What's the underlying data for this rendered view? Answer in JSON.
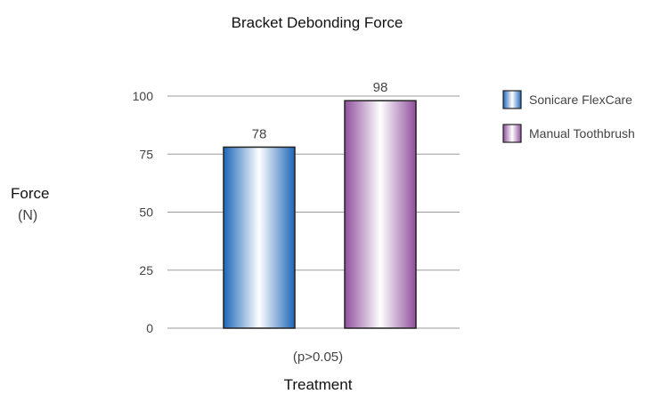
{
  "chart_data": {
    "type": "bar",
    "title": "Bracket Debonding Force",
    "ylabel": "Force",
    "yunit": "(N)",
    "xlabel": "Treatment",
    "note": "(p>0.05)",
    "ylim": [
      0,
      100
    ],
    "yticks": [
      0,
      25,
      50,
      75,
      100
    ],
    "grid": true,
    "legend_position": "right",
    "series": [
      {
        "name": "Sonicare FlexCare",
        "value": 78,
        "label": "78",
        "color": "#2a73c2"
      },
      {
        "name": "Manual Toothbrush",
        "value": 98,
        "label": "98",
        "color": "#9a5aa6"
      }
    ]
  }
}
